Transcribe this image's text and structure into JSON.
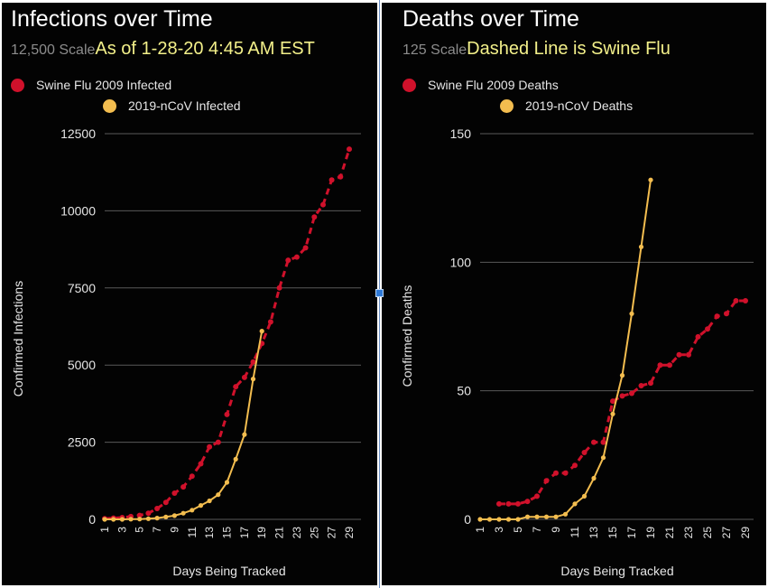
{
  "colors": {
    "background": "#030303",
    "swine": "#d0112b",
    "ncov": "#f3bd4f",
    "grid": "#5a5a5a",
    "text": "#e6e6e6",
    "note": "#f3f08a",
    "scale": "#8c8c8c"
  },
  "chart_data": [
    {
      "type": "line",
      "title": "Infections over Time",
      "scale_label": "12,500 Scale",
      "note": "As of 1-28-20 4:45 AM EST",
      "xlabel": "Days Being Tracked",
      "ylabel": "Confirmed Infections",
      "xticks": [
        "1",
        "3",
        "5",
        "7",
        "9",
        "11",
        "13",
        "15",
        "17",
        "19",
        "21",
        "23",
        "25",
        "27",
        "29"
      ],
      "yticks": [
        "0",
        "2500",
        "5000",
        "7500",
        "10000",
        "12500"
      ],
      "xlim": [
        1,
        29
      ],
      "ylim": [
        0,
        12500
      ],
      "grid": true,
      "legend": "top-left",
      "series": [
        {
          "name": "Swine Flu 2009 Infected",
          "style": "dashed",
          "x": [
            1,
            2,
            3,
            4,
            5,
            6,
            7,
            8,
            9,
            10,
            11,
            12,
            13,
            14,
            15,
            16,
            17,
            18,
            19,
            20,
            21,
            22,
            23,
            24,
            25,
            26,
            27,
            28,
            29
          ],
          "values": [
            20,
            40,
            60,
            90,
            130,
            200,
            350,
            550,
            850,
            1050,
            1400,
            1800,
            2350,
            2500,
            3400,
            4300,
            4600,
            5100,
            5700,
            6400,
            7500,
            8400,
            8500,
            8800,
            9800,
            10200,
            11000,
            11100,
            12000
          ]
        },
        {
          "name": "2019-nCoV Infected",
          "style": "solid",
          "x": [
            1,
            2,
            3,
            4,
            5,
            6,
            7,
            8,
            9,
            10,
            11,
            12,
            13,
            14,
            15,
            16,
            17,
            18,
            19
          ],
          "values": [
            0,
            0,
            0,
            5,
            10,
            20,
            40,
            80,
            120,
            200,
            300,
            450,
            600,
            800,
            1200,
            1950,
            2750,
            4550,
            6100
          ]
        }
      ]
    },
    {
      "type": "line",
      "title": "Deaths over Time",
      "scale_label": "125 Scale",
      "note": "Dashed Line is Swine Flu",
      "xlabel": "Days Being Tracked",
      "ylabel": "Confirmed  Deaths",
      "xticks": [
        "1",
        "3",
        "5",
        "7",
        "9",
        "11",
        "13",
        "15",
        "17",
        "19",
        "21",
        "23",
        "25",
        "27",
        "29"
      ],
      "yticks": [
        "0",
        "50",
        "100",
        "150"
      ],
      "xlim": [
        1,
        29
      ],
      "ylim": [
        0,
        150
      ],
      "grid": true,
      "legend": "top-left",
      "series": [
        {
          "name": "Swine Flu 2009 Deaths",
          "style": "dashed",
          "x": [
            3,
            4,
            5,
            6,
            7,
            8,
            9,
            10,
            11,
            12,
            13,
            14,
            15,
            16,
            17,
            18,
            19,
            20,
            21,
            22,
            23,
            24,
            25,
            26,
            27,
            28,
            29
          ],
          "values": [
            6,
            6,
            6,
            7,
            9,
            15,
            18,
            18,
            21,
            26,
            30,
            30,
            46,
            48,
            49,
            52,
            53,
            60,
            60,
            64,
            64,
            71,
            74,
            79,
            80,
            85,
            85
          ]
        },
        {
          "name": "2019-nCoV Deaths",
          "style": "solid",
          "x": [
            1,
            2,
            3,
            4,
            5,
            6,
            7,
            8,
            9,
            10,
            11,
            12,
            13,
            14,
            15,
            16,
            17,
            18,
            19
          ],
          "values": [
            0,
            0,
            0,
            0,
            0,
            1,
            1,
            1,
            1,
            2,
            6,
            9,
            16,
            24,
            41,
            56,
            80,
            106,
            132
          ]
        }
      ]
    }
  ]
}
